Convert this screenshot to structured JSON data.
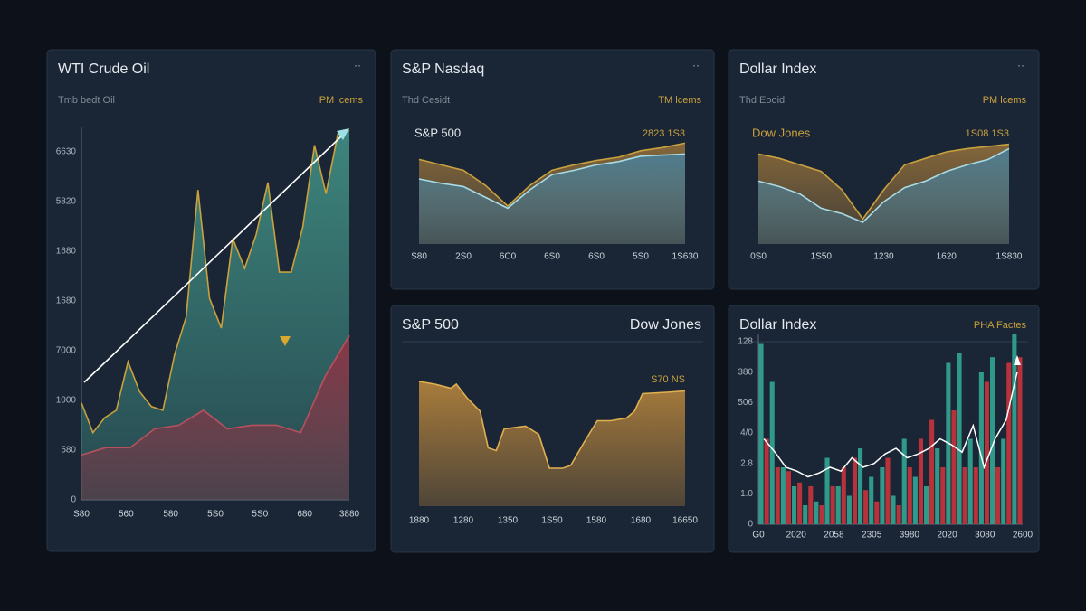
{
  "panels": [
    {
      "title": "WTI Crude Oil",
      "menu": "··",
      "subtitle": "Tmb bedt Oil",
      "note": "PM lcems",
      "y_labels": [
        "6630",
        "5820",
        "1680",
        "1680",
        "7000",
        "1000",
        "580",
        "0"
      ],
      "x_labels": [
        "S80",
        "560",
        "580",
        "5S0",
        "5S0",
        "680",
        "3880"
      ],
      "series": [
        {
          "type": "area",
          "color": "#c9a13e",
          "fill": "#3f8a80",
          "x": [
            0,
            4.3,
            8.7,
            13,
            17.4,
            21.7,
            26.1,
            30.4,
            34.8,
            39.1,
            43.5,
            47.8,
            52.2,
            56.5,
            60.9,
            65.2,
            69.6,
            73.9,
            78.3,
            82.6,
            87,
            91.3,
            95.7,
            100
          ],
          "values": [
            26,
            18,
            22,
            24,
            37,
            29,
            25,
            24,
            39,
            49,
            83,
            54,
            46,
            70,
            62,
            71,
            85,
            61,
            61,
            73,
            95,
            82,
            98,
            99
          ]
        },
        {
          "type": "area",
          "color": "#b8505e",
          "fill": "#8c3445",
          "x": [
            0,
            9.1,
            18.2,
            27.3,
            36.4,
            45.5,
            54.5,
            63.6,
            72.7,
            81.8,
            90.9,
            100
          ],
          "values": [
            12,
            14,
            14,
            19,
            20,
            24,
            19,
            20,
            20,
            18,
            33,
            44
          ]
        }
      ]
    },
    {
      "title": "S&P Nasdaq",
      "menu": "··",
      "subtitle": "Thd Cesidt",
      "note": "TM lcems",
      "legend": "S&P 500",
      "legend_color": "#e6e9ee",
      "legend_value": "2823 1S3",
      "x_labels": [
        "S80",
        "2S0",
        "6C0",
        "6S0",
        "6S0",
        "5S0",
        "1S630"
      ],
      "series": [
        {
          "type": "area",
          "color": "#c9a13e",
          "fill": "#8a6a3a",
          "values": [
            78,
            73,
            68,
            54,
            35,
            54,
            68,
            73,
            77,
            80,
            86,
            89,
            93
          ]
        },
        {
          "type": "area",
          "color": "#a8dbe6",
          "fill": "#4d7d92",
          "values": [
            60,
            56,
            53,
            43,
            33,
            50,
            64,
            68,
            73,
            76,
            81,
            82,
            83
          ]
        }
      ]
    },
    {
      "title": "Dollar Index",
      "menu": "··",
      "subtitle": "Thd Eooid",
      "note": "PM lcems",
      "legend": "Dow Jones",
      "legend_color": "#c9a13e",
      "legend_value": "1S08 1S3",
      "x_labels": [
        "0S0",
        "1S50",
        "1230",
        "1620",
        "1S830"
      ],
      "series": [
        {
          "type": "area",
          "color": "#c9a13e",
          "fill": "#8a6a3a",
          "values": [
            83,
            79,
            73,
            67,
            50,
            23,
            50,
            73,
            79,
            85,
            88,
            90,
            92
          ]
        },
        {
          "type": "area",
          "color": "#a8dbe6",
          "fill": "#4d7d92",
          "values": [
            58,
            53,
            46,
            33,
            28,
            20,
            39,
            52,
            58,
            67,
            73,
            78,
            88
          ]
        }
      ]
    },
    {
      "title": "S&P 500",
      "title_right": "Dow Jones",
      "legend_value": "S70 NS",
      "x_labels": [
        "1880",
        "1280",
        "1350",
        "1S50",
        "1580",
        "1680",
        "16650"
      ],
      "series": [
        {
          "type": "area",
          "color": "#e0b050",
          "fill": "#b0803c",
          "x": [
            0,
            6,
            12,
            14,
            18,
            23,
            26,
            29,
            32,
            40,
            45,
            49,
            54,
            57,
            62,
            67,
            72,
            78,
            81,
            84,
            93,
            100
          ],
          "values": [
            92,
            90,
            87,
            90,
            80,
            70,
            43,
            41,
            57,
            59,
            53,
            28,
            28,
            30,
            47,
            63,
            63,
            65,
            70,
            83,
            84,
            85
          ]
        }
      ]
    },
    {
      "title": "Dollar Index",
      "note": "PHA Factes",
      "y_labels": [
        "128",
        "380",
        "506",
        "4/0",
        "2.8",
        "1.0",
        "0"
      ],
      "x_labels": [
        "G0",
        "2020",
        "2058",
        "2305",
        "3980",
        "2020",
        "3080",
        "2600"
      ],
      "series": [
        {
          "type": "bar",
          "color": "#2f9a8a",
          "values": [
            95,
            75,
            30,
            20,
            10,
            12,
            35,
            20,
            15,
            40,
            25,
            30,
            15,
            45,
            25,
            20,
            40,
            85,
            90,
            45,
            80,
            88,
            45,
            100
          ]
        },
        {
          "type": "bar",
          "color": "#b8323c",
          "values": [
            45,
            30,
            28,
            22,
            20,
            10,
            20,
            30,
            35,
            18,
            12,
            35,
            10,
            30,
            45,
            55,
            30,
            60,
            30,
            30,
            75,
            30,
            85,
            88
          ]
        },
        {
          "type": "line",
          "color": "#ffffff",
          "values": [
            45,
            38,
            30,
            28,
            25,
            27,
            30,
            28,
            35,
            30,
            32,
            37,
            40,
            35,
            37,
            40,
            45,
            42,
            38,
            52,
            30,
            45,
            55,
            80
          ]
        }
      ]
    }
  ]
}
